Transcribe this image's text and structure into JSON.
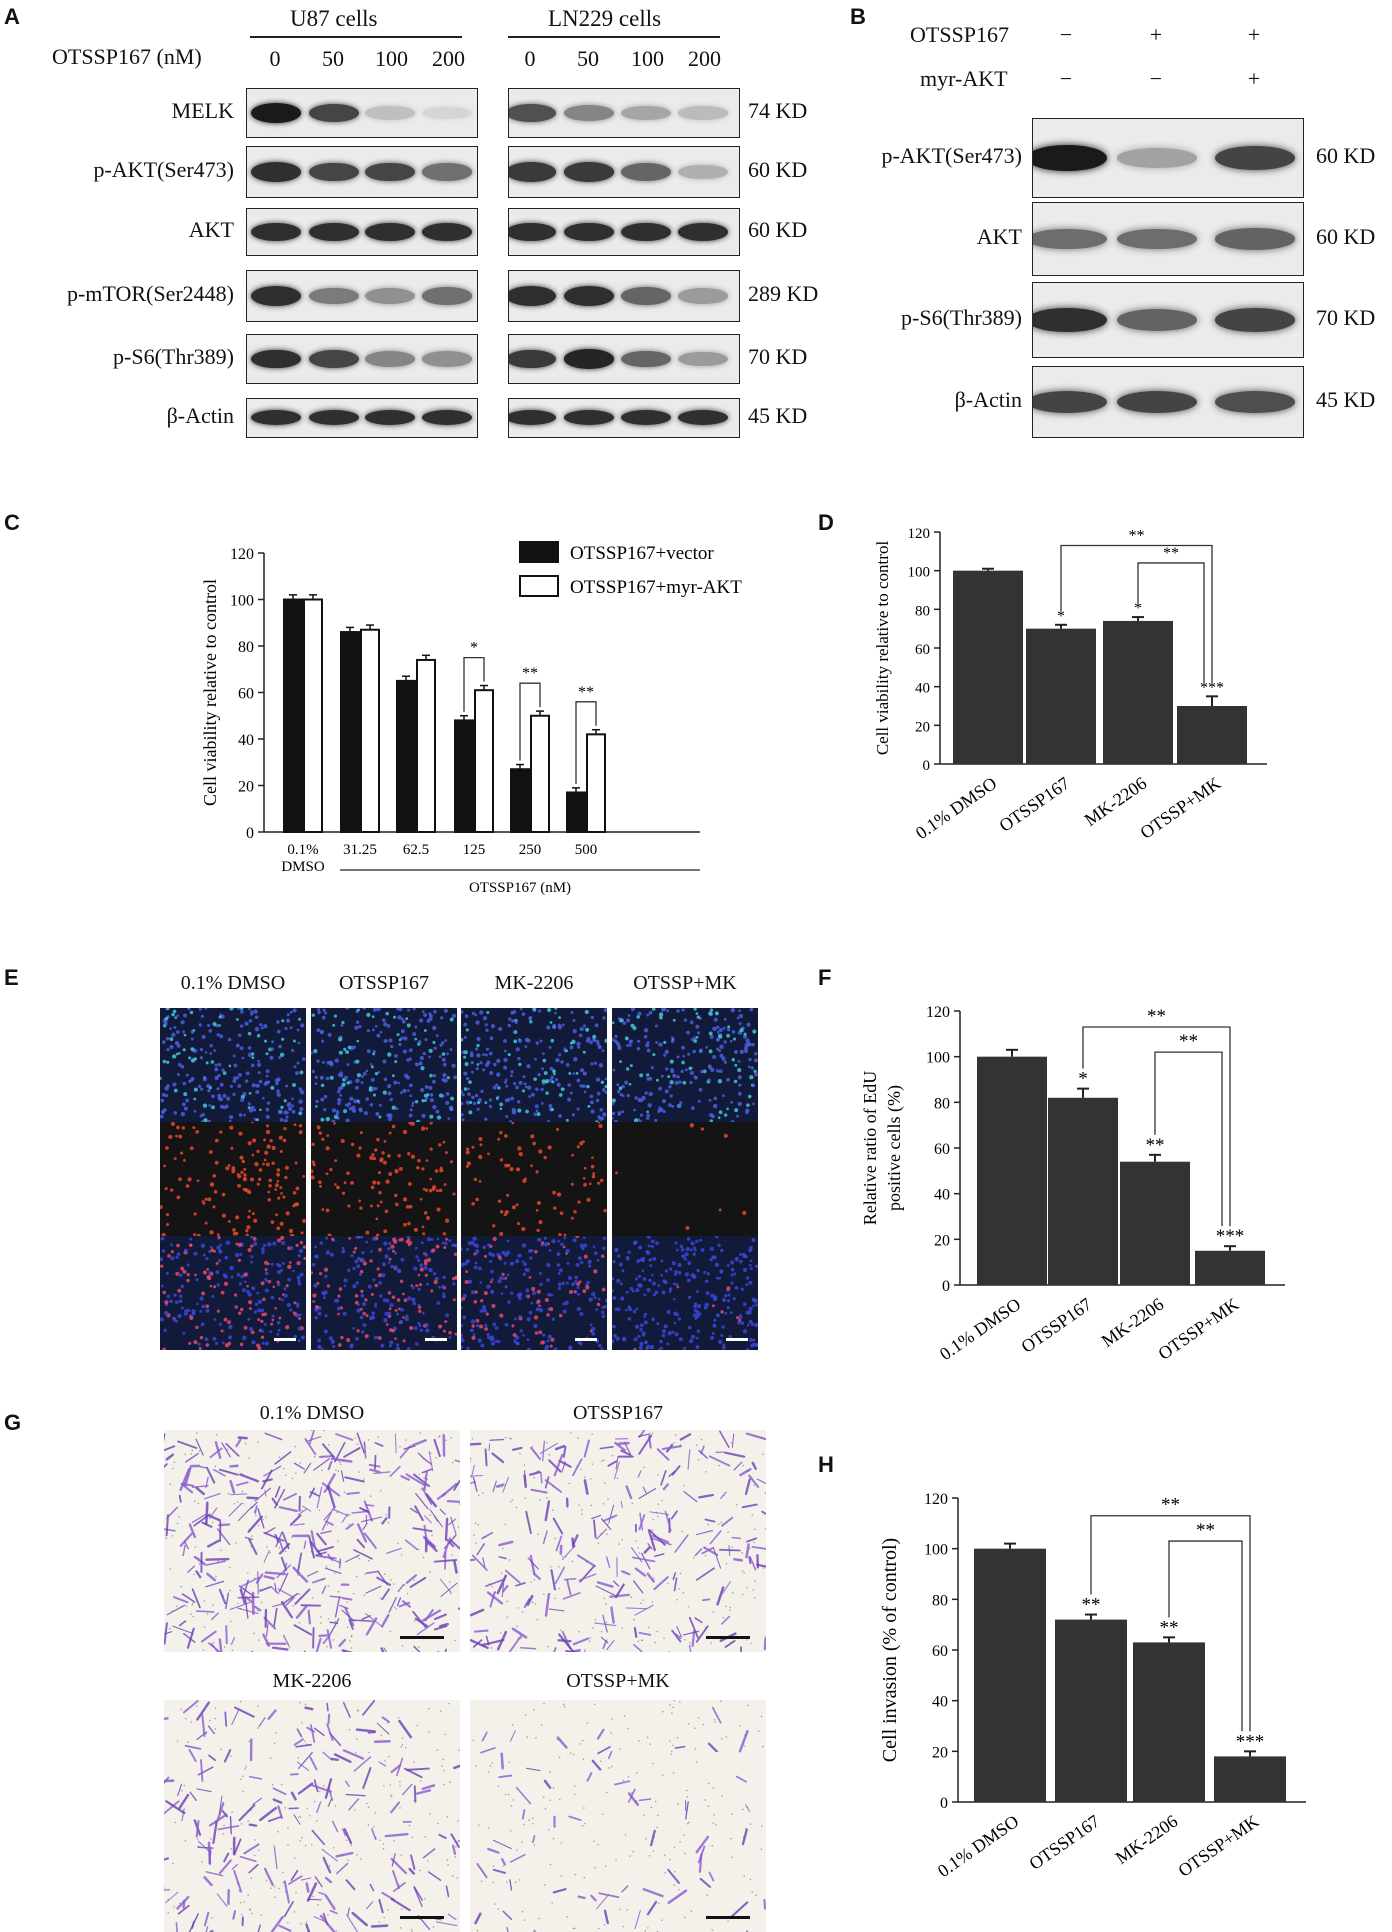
{
  "panels": {
    "A": {
      "label": "A",
      "group1": "U87 cells",
      "group2": "LN229 cells",
      "dose_label": "OTSSP167 (nM)",
      "doses": [
        "0",
        "50",
        "100",
        "200"
      ],
      "rows": [
        {
          "name": "MELK",
          "size": "74 KD",
          "u87": [
            0.95,
            0.75,
            0.18,
            0.08
          ],
          "ln229": [
            0.7,
            0.45,
            0.3,
            0.2
          ]
        },
        {
          "name": "p-AKT(Ser473)",
          "size": "60 KD",
          "u87": [
            0.85,
            0.75,
            0.75,
            0.55
          ],
          "ln229": [
            0.8,
            0.8,
            0.6,
            0.25
          ]
        },
        {
          "name": "AKT",
          "size": "60 KD",
          "u87": [
            0.85,
            0.85,
            0.85,
            0.85
          ],
          "ln229": [
            0.85,
            0.85,
            0.85,
            0.85
          ]
        },
        {
          "name": "p-mTOR(Ser2448)",
          "size": "289 KD",
          "u87": [
            0.85,
            0.5,
            0.4,
            0.55
          ],
          "ln229": [
            0.85,
            0.85,
            0.6,
            0.35
          ]
        },
        {
          "name": "p-S6(Thr389)",
          "size": "70 KD",
          "u87": [
            0.85,
            0.75,
            0.45,
            0.4
          ],
          "ln229": [
            0.8,
            0.9,
            0.6,
            0.35
          ]
        },
        {
          "name": "β-Actin",
          "size": "45 KD",
          "u87": [
            0.85,
            0.85,
            0.85,
            0.85
          ],
          "ln229": [
            0.85,
            0.85,
            0.85,
            0.85
          ]
        }
      ]
    },
    "B": {
      "label": "B",
      "cond1": "OTSSP167",
      "cond2": "myr-AKT",
      "signs1": [
        "−",
        "+",
        "+"
      ],
      "signs2": [
        "−",
        "−",
        "+"
      ],
      "rows": [
        {
          "name": "p-AKT(Ser473)",
          "size": "60 KD",
          "lanes": [
            0.95,
            0.3,
            0.75
          ]
        },
        {
          "name": "AKT",
          "size": "60 KD",
          "lanes": [
            0.55,
            0.55,
            0.6
          ]
        },
        {
          "name": "p-S6(Thr389)",
          "size": "70 KD",
          "lanes": [
            0.85,
            0.6,
            0.75
          ]
        },
        {
          "name": "β-Actin",
          "size": "45 KD",
          "lanes": [
            0.75,
            0.75,
            0.7
          ]
        }
      ]
    },
    "E": {
      "label": "E",
      "columns": [
        "0.1% DMSO",
        "OTSSP167",
        "MK-2206",
        "OTSSP+MK"
      ],
      "red_density": [
        1.0,
        0.8,
        0.55,
        0.05
      ]
    },
    "G": {
      "label": "G",
      "images": [
        "0.1% DMSO",
        "OTSSP167",
        "MK-2206",
        "OTSSP+MK"
      ],
      "density": [
        1.0,
        0.7,
        0.6,
        0.2
      ]
    }
  },
  "chart_data": [
    {
      "panel": "C",
      "label": "C",
      "type": "bar",
      "ylabel": "Cell viability relative to control",
      "xlabel": "OTSSP167 (nM)",
      "categories": [
        "0.1%\nDMSO",
        "31.25",
        "62.5",
        "125",
        "250",
        "500"
      ],
      "series": [
        {
          "name": "OTSSP167+vector",
          "values": [
            100,
            86,
            65,
            48,
            27,
            17
          ],
          "errors": [
            2,
            2,
            2,
            2,
            2,
            2
          ]
        },
        {
          "name": "OTSSP167+myr-AKT",
          "values": [
            100,
            87,
            74,
            61,
            50,
            42
          ],
          "errors": [
            2,
            2,
            2,
            2,
            2,
            2
          ]
        }
      ],
      "significance": [
        "*",
        "**",
        "**"
      ],
      "ylim": [
        0,
        120
      ],
      "yticks": [
        0,
        20,
        40,
        60,
        80,
        100,
        120
      ],
      "legend": "top-right"
    },
    {
      "panel": "D",
      "label": "D",
      "type": "bar",
      "ylabel": "Cell viability relative to control",
      "categories": [
        "0.1% DMSO",
        "OTSSP167",
        "MK-2206",
        "OTSSP+MK"
      ],
      "values": [
        100,
        70,
        74,
        30
      ],
      "errors": [
        1,
        2,
        2,
        5
      ],
      "bar_marks": [
        "",
        "*",
        "*",
        "***"
      ],
      "brackets": [
        "**",
        "**"
      ],
      "ylim": [
        0,
        120
      ],
      "yticks": [
        0,
        20,
        40,
        60,
        80,
        100,
        120
      ]
    },
    {
      "panel": "F",
      "label": "F",
      "type": "bar",
      "ylabel_lines": [
        "Relative ratio of EdU",
        "positive cells (%)"
      ],
      "categories": [
        "0.1% DMSO",
        "OTSSP167",
        "MK-2206",
        "OTSSP+MK"
      ],
      "values": [
        100,
        82,
        54,
        15
      ],
      "errors": [
        3,
        4,
        3,
        2
      ],
      "bar_marks": [
        "",
        "*",
        "**",
        "***"
      ],
      "brackets": [
        "**",
        "**"
      ],
      "ylim": [
        0,
        120
      ],
      "yticks": [
        0,
        20,
        40,
        60,
        80,
        100,
        120
      ]
    },
    {
      "panel": "H",
      "label": "H",
      "type": "bar",
      "ylabel": "Cell invasion (% of control)",
      "categories": [
        "0.1% DMSO",
        "OTSSP167",
        "MK-2206",
        "OTSSP+MK"
      ],
      "values": [
        100,
        72,
        63,
        18
      ],
      "errors": [
        2,
        2,
        2,
        2
      ],
      "bar_marks": [
        "",
        "**",
        "**",
        "***"
      ],
      "brackets": [
        "**",
        "**"
      ],
      "ylim": [
        0,
        120
      ],
      "yticks": [
        0,
        20,
        40,
        60,
        80,
        100,
        120
      ]
    }
  ]
}
